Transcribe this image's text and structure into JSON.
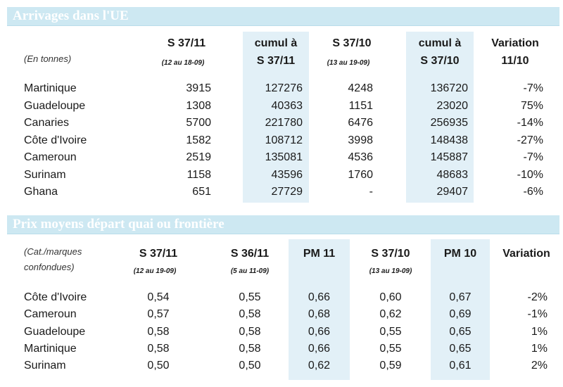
{
  "table1": {
    "title": "Arrivages dans l'UE",
    "unit": "(En tonnes)",
    "columns": [
      {
        "label": "S 37/11",
        "sub": "(12 au 18-09)"
      },
      {
        "label1": "cumul à",
        "label2": "S 37/11"
      },
      {
        "label": "S 37/10",
        "sub": "(13 au 19-09)"
      },
      {
        "label1": "cumul à",
        "label2": "S 37/10"
      },
      {
        "label1": "Variation",
        "label2": "11/10"
      }
    ],
    "rows": [
      {
        "name": "Martinique",
        "values": [
          "3915",
          "127276",
          "4248",
          "136720",
          "-7%"
        ]
      },
      {
        "name": "Guadeloupe",
        "values": [
          "1308",
          "40363",
          "1151",
          "23020",
          "75%"
        ]
      },
      {
        "name": "Canaries",
        "values": [
          "5700",
          "221780",
          "6476",
          "256935",
          "-14%"
        ]
      },
      {
        "name": "Côte d'Ivoire",
        "values": [
          "1582",
          "108712",
          "3998",
          "148438",
          "-27%"
        ]
      },
      {
        "name": "Cameroun",
        "values": [
          "2519",
          "135081",
          "4536",
          "145887",
          "-7%"
        ]
      },
      {
        "name": "Surinam",
        "values": [
          "1158",
          "43596",
          "1760",
          "48683",
          "-10%"
        ]
      },
      {
        "name": "Ghana",
        "values": [
          "651",
          "27729",
          "-",
          "29407",
          "-6%"
        ]
      }
    ]
  },
  "table2": {
    "title": "Prix moyens départ quai ou frontière",
    "unit1": "(Cat./marques",
    "unit2": "confondues)",
    "columns": [
      {
        "label": "S 37/11",
        "sub": "(12 au 19-09)"
      },
      {
        "label": "S 36/11",
        "sub": "(5 au 11-09)"
      },
      {
        "label": "PM 11",
        "sub": ""
      },
      {
        "label": "S 37/10",
        "sub": "(13 au 19-09)"
      },
      {
        "label": "PM 10",
        "sub": ""
      },
      {
        "label": "Variation",
        "sub": ""
      }
    ],
    "rows": [
      {
        "name": "Côte d'Ivoire",
        "values": [
          "0,54",
          "0,55",
          "0,66",
          "0,60",
          "0,67",
          "-2%"
        ]
      },
      {
        "name": "Cameroun",
        "values": [
          "0,57",
          "0,58",
          "0,68",
          "0,62",
          "0,69",
          "-1%"
        ]
      },
      {
        "name": "Guadeloupe",
        "values": [
          "0,58",
          "0,58",
          "0,66",
          "0,55",
          "0,65",
          "1%"
        ]
      },
      {
        "name": "Martinique",
        "values": [
          "0,58",
          "0,58",
          "0,66",
          "0,55",
          "0,65",
          "1%"
        ]
      },
      {
        "name": "Surinam",
        "values": [
          "0,50",
          "0,50",
          "0,62",
          "0,59",
          "0,61",
          "2%"
        ]
      }
    ]
  }
}
